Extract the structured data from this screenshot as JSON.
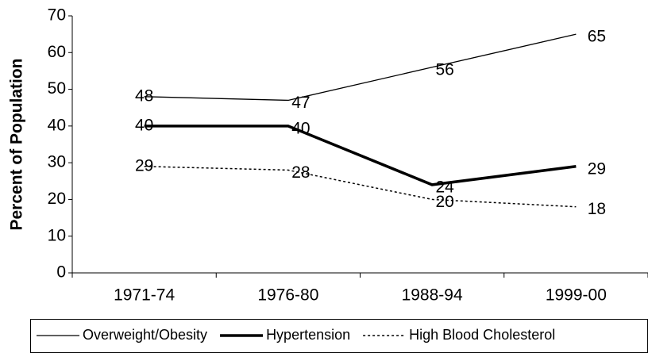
{
  "chart_data": {
    "type": "line",
    "y_label": "Percent of Population",
    "categories": [
      "1971-74",
      "1976-80",
      "1988-94",
      "1999-00"
    ],
    "series": [
      {
        "name": "Overweight/Obesity",
        "color": "#000000",
        "line_style": "thin",
        "values": [
          48,
          47,
          56,
          65
        ]
      },
      {
        "name": "Hypertension",
        "color": "#000000",
        "line_style": "thick",
        "values": [
          40,
          40,
          24,
          29
        ]
      },
      {
        "name": "High Blood Cholesterol",
        "color": "#000000",
        "line_style": "dotted",
        "values": [
          29,
          28,
          20,
          18
        ]
      }
    ],
    "ylim": [
      0,
      70
    ],
    "yticks": [
      0,
      10,
      20,
      30,
      40,
      50,
      60,
      70
    ],
    "legend": "bottom"
  }
}
